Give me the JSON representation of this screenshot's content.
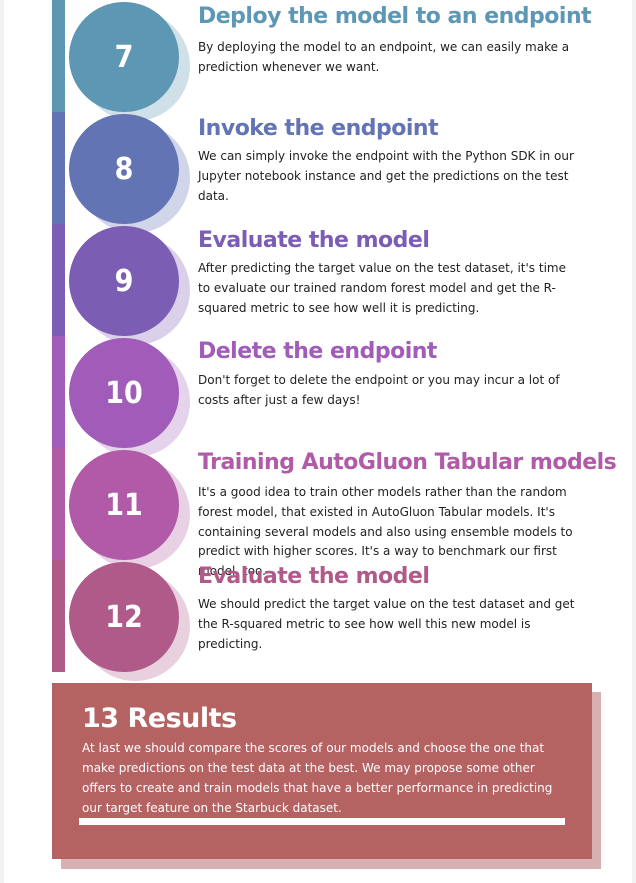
{
  "steps": [
    {
      "number": "7",
      "title": "Deploy the model to an endpoint",
      "text": "By deploying the model to an endpoint, we can easily make a prediction whenever we want.",
      "color": "#5d97b4",
      "shadow": "#a9c6d6"
    },
    {
      "number": "8",
      "title": "Invoke the endpoint",
      "text": "We can simply invoke the endpoint with the Python SDK in our Jupyter notebook instance and get the predictions on the test data.",
      "color": "#6274b4",
      "shadow": "#aab3d8"
    },
    {
      "number": "9",
      "title": "Evaluate the model",
      "text": "After predicting the target value on the test dataset, it's time to evaluate our trained random forest model and get the R-squared metric to see how well it is predicting.",
      "color": "#7c5db4",
      "shadow": "#bba9d8"
    },
    {
      "number": "10",
      "title": "Delete the endpoint",
      "text": "Don't forget to delete the endpoint or you may incur a lot of costs after just a few days!",
      "color": "#a05cb8",
      "shadow": "#cfaddb"
    },
    {
      "number": "11",
      "title": "Training AutoGluon Tabular models",
      "text": "It's a good idea to train other models rather than the random forest model, that existed in AutoGluon Tabular models. It's containing several models and also using ensemble models to predict with higher scores. It's a way to benchmark our first model, too.",
      "color": "#b05aa8",
      "shadow": "#d6aad0"
    },
    {
      "number": "12",
      "title": "Evaluate the model",
      "text": "We should predict the target value on the test dataset and get the R-squared metric to see how well this new model is predicting.",
      "color": "#b05a8a",
      "shadow": "#d6aac2"
    }
  ],
  "results": {
    "title": "13 Results",
    "text": "At last we should compare the scores of our models and choose the one that make predictions on the test data at the best. We may propose some other offers  to create and train models that have a better performance in predicting our target feature on the Starbuck dataset."
  }
}
